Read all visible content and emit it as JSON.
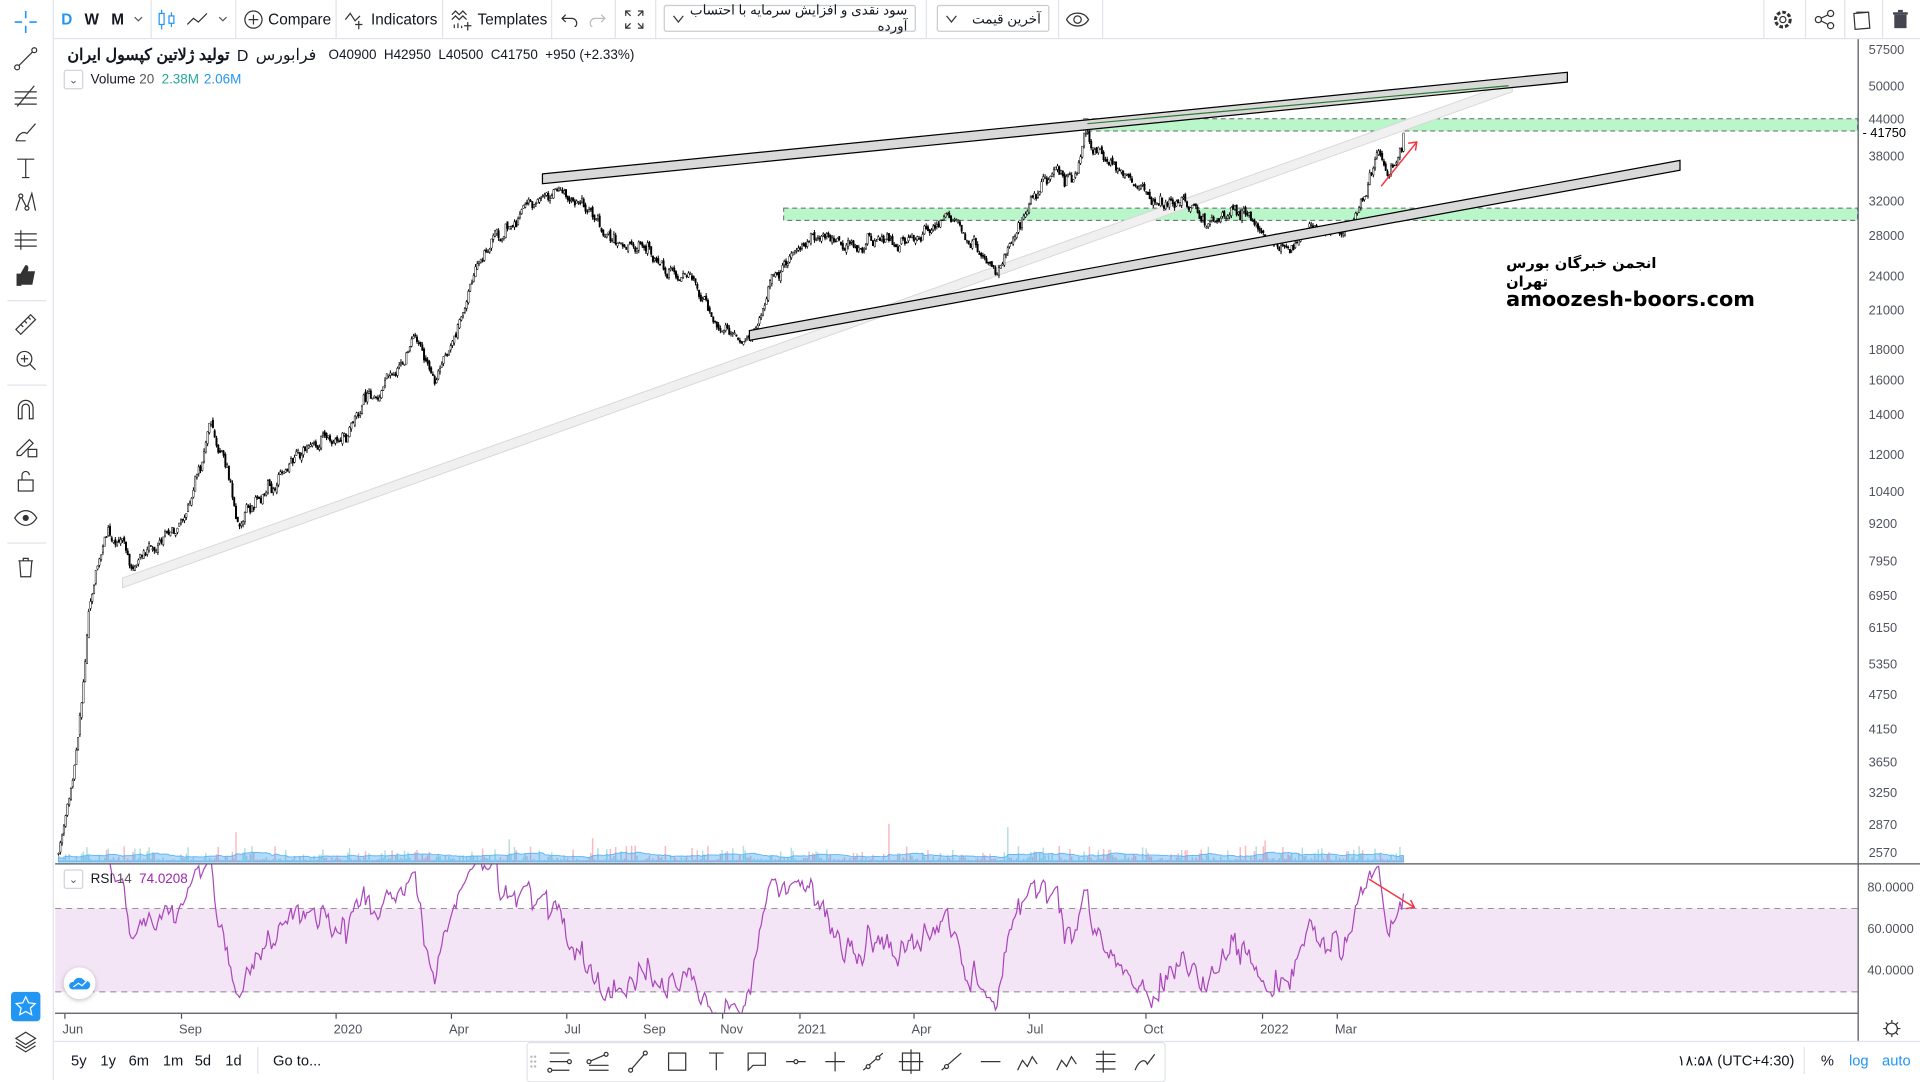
{
  "toolbar": {
    "intervals": [
      "D",
      "W",
      "M"
    ],
    "compare_label": "Compare",
    "indicators_label": "Indicators",
    "templates_label": "Templates",
    "dividend_dropdown": "سود نقدی و افزایش سرمایه با احتساب آورده",
    "price_type_dropdown": "آخرین قیمت",
    "accent": "#2196f3"
  },
  "legend": {
    "symbol_name": "تولید ژلاتین کپسول ایران",
    "interval": "D",
    "exchange": "فرابورس",
    "open": "O40900",
    "high": "H42950",
    "low": "L40500",
    "close": "C41750",
    "change": "+950 (+2.33%)"
  },
  "volume_legend": {
    "name": "Volume",
    "period": "20",
    "value": "2.38M",
    "ma_value": "2.06M",
    "value_color": "#26a69a",
    "ma_color": "#2196f3"
  },
  "rsi_legend": {
    "name": "RSI",
    "period": "14",
    "value": "74.0208",
    "color": "#9c27b0"
  },
  "watermark": {
    "line1": "انجمن خبرگان بورس تهران",
    "line2": "amoozesh-boors.com"
  },
  "price_axis": {
    "scale": "log",
    "labels": [
      57500,
      50000,
      44000,
      38000,
      32000,
      28000,
      24000,
      21000,
      18000,
      16000,
      14000,
      12000,
      10400,
      9200,
      7950,
      6950,
      6150,
      5350,
      4750,
      4150,
      3650,
      3250,
      2870,
      2570
    ],
    "last_price": 41750
  },
  "rsi_axis": {
    "labels": [
      "80.0000",
      "60.0000",
      "40.0000"
    ],
    "values": [
      80,
      60,
      40
    ],
    "upper_band": 70,
    "lower_band": 30
  },
  "time_axis": [
    {
      "label": "Jun",
      "date": "2019-06-01"
    },
    {
      "label": "Sep",
      "date": "2019-09-01"
    },
    {
      "label": "2020",
      "date": "2020-01-01"
    },
    {
      "label": "Apr",
      "date": "2020-04-01"
    },
    {
      "label": "Jul",
      "date": "2020-07-01"
    },
    {
      "label": "Sep",
      "date": "2020-09-01"
    },
    {
      "label": "Nov",
      "date": "2020-11-01"
    },
    {
      "label": "2021",
      "date": "2021-01-01"
    },
    {
      "label": "Apr",
      "date": "2021-04-01"
    },
    {
      "label": "Jul",
      "date": "2021-07-01"
    },
    {
      "label": "Oct",
      "date": "2021-10-01"
    },
    {
      "label": "2022",
      "date": "2022-01-01"
    },
    {
      "label": "Mar",
      "date": "2022-03-01"
    }
  ],
  "bottom": {
    "ranges": [
      "5y",
      "1y",
      "6m",
      "1m",
      "5d",
      "1d"
    ],
    "goto_label": "Go to...",
    "clock": "۱۸:۵۸ (UTC+4:30)",
    "percent_label": "%",
    "log_label": "log",
    "auto_label": "auto"
  },
  "chart_data": {
    "type": "candlestick",
    "y_scale": "log",
    "ylim": [
      2570,
      57500
    ],
    "note_fields": [
      "date",
      "price"
    ],
    "key_closes": [
      [
        "2019-05-27",
        2600
      ],
      [
        "2019-06-08",
        3500
      ],
      [
        "2019-06-20",
        6500
      ],
      [
        "2019-07-05",
        9500
      ],
      [
        "2019-07-21",
        7800
      ],
      [
        "2019-09-03",
        9000
      ],
      [
        "2019-09-24",
        13500
      ],
      [
        "2019-10-16",
        9500
      ],
      [
        "2019-11-29",
        11500
      ],
      [
        "2019-12-28",
        13000
      ],
      [
        "2020-01-11",
        12500
      ],
      [
        "2020-01-26",
        15000
      ],
      [
        "2020-03-04",
        18500
      ],
      [
        "2020-03-19",
        16000
      ],
      [
        "2020-04-12",
        21000
      ],
      [
        "2020-05-01",
        27000
      ],
      [
        "2020-05-21",
        30000
      ],
      [
        "2020-06-14",
        34000
      ],
      [
        "2020-06-28",
        33000
      ],
      [
        "2020-07-27",
        29000
      ],
      [
        "2020-08-25",
        27000
      ],
      [
        "2020-10-03",
        24000
      ],
      [
        "2020-11-01",
        20000
      ],
      [
        "2020-11-22",
        18500
      ],
      [
        "2020-12-09",
        24000
      ],
      [
        "2021-01-07",
        28000
      ],
      [
        "2021-02-05",
        27000
      ],
      [
        "2021-03-26",
        28000
      ],
      [
        "2021-05-03",
        30000
      ],
      [
        "2021-05-23",
        26000
      ],
      [
        "2021-06-06",
        23500
      ],
      [
        "2021-06-26",
        30000
      ],
      [
        "2021-07-20",
        36000
      ],
      [
        "2021-08-03",
        34000
      ],
      [
        "2021-08-16",
        42000
      ],
      [
        "2021-09-06",
        37000
      ],
      [
        "2021-09-25",
        34000
      ],
      [
        "2021-10-05",
        31000
      ],
      [
        "2021-10-24",
        33000
      ],
      [
        "2021-11-22",
        29000
      ],
      [
        "2021-12-21",
        30000
      ],
      [
        "2022-01-14",
        27000
      ],
      [
        "2022-02-08",
        29000
      ],
      [
        "2022-03-04",
        28500
      ],
      [
        "2022-03-18",
        31500
      ],
      [
        "2022-04-02",
        39000
      ],
      [
        "2022-04-11",
        36000
      ],
      [
        "2022-04-23",
        41750
      ]
    ],
    "support_zones": [
      [
        40500,
        43000
      ],
      [
        29500,
        31500
      ]
    ],
    "candle_up_color": "#ffffff",
    "candle_down_color": "#000000",
    "zone_color": "#b9f6ca",
    "rsi_color": "#ab47bc"
  }
}
